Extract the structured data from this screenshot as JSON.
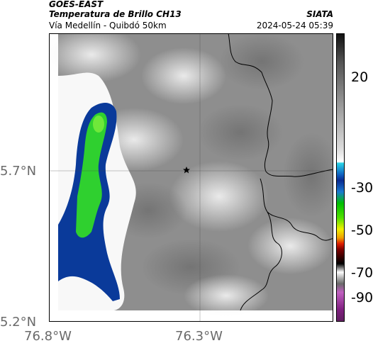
{
  "header": {
    "line1": "GOES-EAST",
    "line2": "Temperatura de Brillo CH13",
    "line3": "Vía Medellín - Quibdó 50km",
    "org": "SIATA",
    "datetime": "2024-05-24 05:39"
  },
  "axes": {
    "y_ticks": [
      "5.7°N",
      "5.2°N"
    ],
    "x_ticks": [
      "76.8°W",
      "76.3°W"
    ]
  },
  "colorbar": {
    "ticks": [
      "20",
      "-30",
      "-50",
      "-70",
      "-90"
    ]
  },
  "colors": {
    "cloud_green": "#2fd02f",
    "cloud_blue": "#0a3a9a",
    "marker": "#000000"
  },
  "marker": {
    "icon": "star-icon"
  }
}
